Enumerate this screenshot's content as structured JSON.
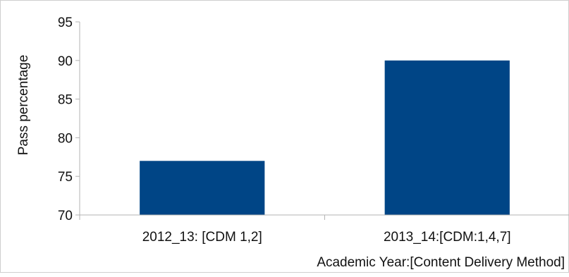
{
  "chart_data": {
    "type": "bar",
    "title": "",
    "xlabel": "Academic Year:[Content Delivery Method]",
    "ylabel": "Pass percentage",
    "categories": [
      "2012_13: [CDM 1,2]",
      "2013_14:[CDM:1,4,7]"
    ],
    "values": [
      77,
      90
    ],
    "ylim": [
      70,
      95
    ],
    "yticks": [
      "70",
      "75",
      "80",
      "85",
      "90",
      "95"
    ],
    "grid": false,
    "legend": "none",
    "bar_color": "#004586"
  }
}
